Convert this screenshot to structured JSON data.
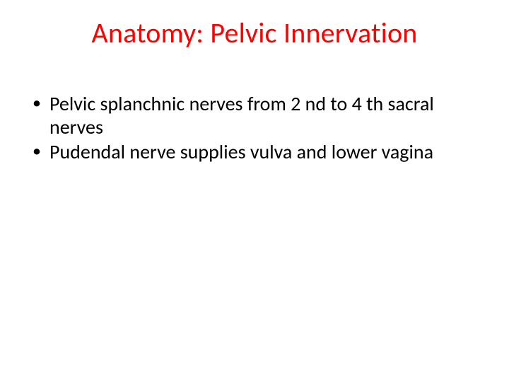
{
  "slide": {
    "title": "Anatomy: Pelvic Innervation",
    "title_color": "#ff0000",
    "title_fontsize": 40,
    "body_fontsize": 28,
    "body_color": "#000000",
    "background_color": "#ffffff",
    "bullets": [
      "Pelvic splanchnic nerves from 2 nd to 4 th sacral nerves",
      "Pudendal nerve supplies vulva and lower vagina"
    ]
  }
}
